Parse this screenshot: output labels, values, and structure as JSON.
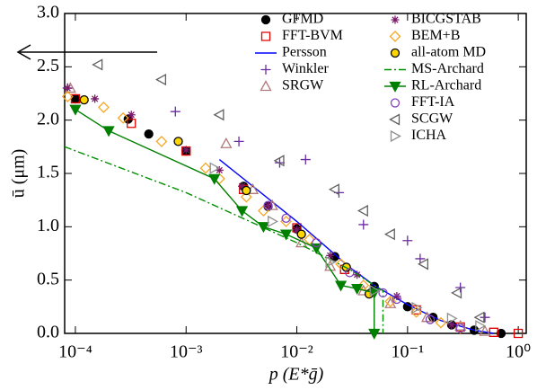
{
  "chart_data": {
    "type": "line",
    "xlabel": "p  (E*ḡ)",
    "ylabel": "ū  (μm)",
    "xscale": "log",
    "xlim": [
      8e-05,
      1.18
    ],
    "ylim": [
      0,
      3
    ],
    "xticks": [
      {
        "value": 0.0001,
        "label": "10⁻⁴"
      },
      {
        "value": 0.001,
        "label": "10⁻³"
      },
      {
        "value": 0.01,
        "label": "10⁻²"
      },
      {
        "value": 0.1,
        "label": "10⁻¹"
      },
      {
        "value": 1,
        "label": "10⁰"
      }
    ],
    "yticks": [
      {
        "value": 0,
        "label": "0.0"
      },
      {
        "value": 0.5,
        "label": "0.5"
      },
      {
        "value": 1,
        "label": "1.0"
      },
      {
        "value": 1.5,
        "label": "1.5"
      },
      {
        "value": 2,
        "label": "2.0"
      },
      {
        "value": 2.5,
        "label": "2.5"
      },
      {
        "value": 3,
        "label": "3.0"
      }
    ],
    "series": [
      {
        "name": "GFMD",
        "color": "#000000",
        "fill": "#000000",
        "marker": "circle",
        "column": 1,
        "x": [
          0.0001,
          0.0003,
          0.00046,
          0.001,
          0.0033,
          0.0055,
          0.01,
          0.022,
          0.05,
          0.1,
          0.17,
          0.25,
          0.4,
          0.7
        ],
        "values": [
          2.2,
          2.01,
          1.87,
          1.71,
          1.38,
          1.19,
          0.98,
          0.72,
          0.44,
          0.25,
          0.15,
          0.08,
          0.03,
          0
        ]
      },
      {
        "name": "FFT-BVM",
        "color": "#e00000",
        "marker": "square",
        "column": 1,
        "x": [
          0.0001,
          0.00032,
          0.001,
          0.0033,
          0.01,
          0.027,
          0.12,
          0.3,
          0.6,
          1.0
        ],
        "values": [
          2.2,
          1.97,
          1.71,
          1.35,
          0.99,
          0.6,
          0.22,
          0.06,
          0.01,
          0
        ]
      },
      {
        "name": "Persson",
        "color": "#0000ff",
        "line": "solid",
        "column": 1,
        "x": [
          0.002,
          0.01,
          0.03,
          0.05,
          0.1,
          0.2,
          0.4,
          0.6
        ],
        "values": [
          1.63,
          1.05,
          0.62,
          0.45,
          0.27,
          0.12,
          0.03,
          0
        ]
      },
      {
        "name": "Winkler",
        "color": "#6a2ca0",
        "marker": "plus",
        "column": 1,
        "x": [
          8.5e-05,
          0.0008,
          0.003,
          0.007,
          0.012,
          0.024,
          0.04,
          0.1,
          0.13,
          0.3,
          0.5
        ],
        "values": [
          2.3,
          2.08,
          1.8,
          1.6,
          1.63,
          1.32,
          1.02,
          0.87,
          0.7,
          0.43,
          0.15
        ]
      },
      {
        "name": "SRGW",
        "color": "#b07a7a",
        "marker": "tri-up",
        "column": 1,
        "x": [
          9e-05,
          0.0023,
          0.004,
          0.006,
          0.011,
          0.02,
          0.04,
          0.07,
          0.15,
          0.3,
          0.5
        ],
        "values": [
          2.3,
          1.78,
          1.35,
          1.2,
          0.85,
          0.63,
          0.4,
          0.28,
          0.15,
          0.07,
          0.02
        ]
      },
      {
        "name": "BICGSTAB",
        "color": "#7a1a6a",
        "marker": "asterisk",
        "column": 2,
        "x": [
          8.5e-05,
          0.00015,
          0.00032,
          0.001,
          0.002,
          0.0032,
          0.0055,
          0.01,
          0.02,
          0.035,
          0.08,
          0.25
        ],
        "values": [
          2.3,
          2.2,
          2.05,
          1.72,
          1.53,
          1.38,
          1.2,
          0.97,
          0.73,
          0.55,
          0.35,
          0.08
        ]
      },
      {
        "name": "BEM+B",
        "color": "#f5a623",
        "marker": "diamond",
        "column": 2,
        "x": [
          8.5e-05,
          0.00018,
          0.00027,
          0.0006,
          0.0015,
          0.002,
          0.0035,
          0.005,
          0.008,
          0.013,
          0.025,
          0.04,
          0.07,
          0.12,
          0.2,
          0.3
        ],
        "values": [
          2.22,
          2.12,
          2.02,
          1.8,
          1.55,
          1.45,
          1.28,
          1.15,
          1.05,
          0.88,
          0.65,
          0.45,
          0.3,
          0.2,
          0.1,
          0.05
        ]
      },
      {
        "name": "all-atom MD",
        "color": "#000000",
        "fill": "#ffd700",
        "marker": "circle",
        "column": 2,
        "x": [
          0.00012,
          0.00085,
          0.0035,
          0.011,
          0.028,
          0.045
        ],
        "values": [
          2.19,
          1.8,
          1.34,
          0.93,
          0.62,
          0.37
        ]
      },
      {
        "name": "MS-Archard",
        "color": "#009000",
        "line": "dashdot",
        "column": 2,
        "x": [
          8e-05,
          0.001,
          0.01,
          0.03,
          0.05,
          0.06,
          0.06
        ],
        "values": [
          1.75,
          1.32,
          0.85,
          0.6,
          0.45,
          0.4,
          0
        ]
      },
      {
        "name": "RL-Archard",
        "color": "#008000",
        "fill": "#008000",
        "marker": "tri-down",
        "line": "solid",
        "column": 2,
        "x": [
          0.0001,
          0.0002,
          0.0018,
          0.0032,
          0.005,
          0.008,
          0.015,
          0.025,
          0.035,
          0.05,
          0.05
        ],
        "values": [
          2.1,
          1.9,
          1.45,
          1.15,
          1.0,
          0.93,
          0.8,
          0.45,
          0.42,
          0.38,
          0
        ]
      },
      {
        "name": "FFT-IA",
        "color": "#8040c0",
        "marker": "circle",
        "column": 2,
        "x": [
          0.0055,
          0.008,
          0.015,
          0.03,
          0.06,
          0.08,
          0.16,
          0.3
        ],
        "values": [
          1.2,
          1.08,
          0.85,
          0.57,
          0.38,
          0.32,
          0.13,
          0.05
        ]
      },
      {
        "name": "SCGW",
        "color": "#606060",
        "marker": "tri-left",
        "column": 2,
        "x": [
          0.00016,
          0.0006,
          0.002,
          0.007,
          0.022,
          0.04,
          0.07,
          0.14,
          0.28,
          0.45
        ],
        "values": [
          2.52,
          2.38,
          2.05,
          1.62,
          1.35,
          1.15,
          0.93,
          0.65,
          0.38,
          0.15
        ]
      },
      {
        "name": "ICHA",
        "color": "#909090",
        "marker": "tri-right",
        "column": 2,
        "x": [
          0.0018,
          0.006,
          0.02,
          0.05,
          0.12,
          0.25,
          0.45
        ],
        "values": [
          1.55,
          1.05,
          0.67,
          0.4,
          0.24,
          0.14,
          0.07
        ]
      }
    ]
  }
}
